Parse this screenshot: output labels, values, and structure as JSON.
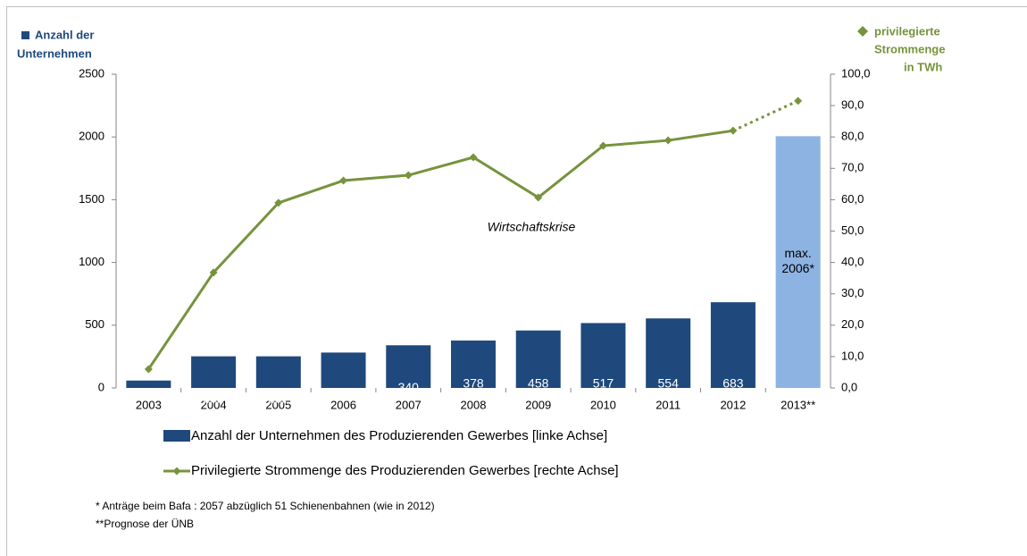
{
  "chart_data": {
    "type": "bar_line",
    "y_label": [
      "Anzahl der",
      "Unternehmen"
    ],
    "y2_label": [
      "privilegierte",
      "Strommenge",
      "in TWh"
    ],
    "annotation": "Wirtschaftskrise",
    "footnotes": [
      "* Anträge beim Bafa : 2057 abzüglich 51 Schienenbahnen  (wie in 2012)",
      "**Prognose der ÜNB"
    ],
    "categories": [
      "2003",
      "2004",
      "2005",
      "2006",
      "2007",
      "2008",
      "2009",
      "2010",
      "2011",
      "2012",
      "2013**"
    ],
    "ylim": [
      0,
      2500
    ],
    "yticks": [
      0,
      500,
      1000,
      1500,
      2000,
      2500
    ],
    "y2lim": [
      0,
      100
    ],
    "y2ticks": [
      {
        "value": 0,
        "label": "0,0"
      },
      {
        "value": 10,
        "label": "10,0"
      },
      {
        "value": 20,
        "label": "20,0"
      },
      {
        "value": 30,
        "label": "30,0"
      },
      {
        "value": 40,
        "label": "40,0"
      },
      {
        "value": 50,
        "label": "50,0"
      },
      {
        "value": 60,
        "label": "60,0"
      },
      {
        "value": 70,
        "label": "70,0"
      },
      {
        "value": 80,
        "label": "80,0"
      },
      {
        "value": 90,
        "label": "90,0"
      },
      {
        "value": 100,
        "label": "100,0"
      }
    ],
    "series": [
      {
        "name": "Anzahl der Unternehmen des Produzierenden Gewerbes [linke Achse]",
        "type": "bar",
        "color": "#1f497d",
        "colors": [
          "#1f497d",
          "#1f497d",
          "#1f497d",
          "#1f497d",
          "#1f497d",
          "#1f497d",
          "#1f497d",
          "#1f497d",
          "#1f497d",
          "#1f497d",
          "#8db3e2"
        ],
        "values": [
          59,
          252,
          252,
          282,
          340,
          378,
          458,
          517,
          554,
          683,
          2006
        ],
        "value_labels": [
          "59",
          "252",
          "252",
          "282",
          "340",
          "378",
          "458",
          "517",
          "554",
          "683",
          "max. 2006*"
        ]
      },
      {
        "name": "Privilegierte Strommenge des Produzierenden Gewerbes [rechte Achse]",
        "type": "line",
        "axis": "y2",
        "color": "#77933c",
        "dashed_last_segment": true,
        "values": [
          6.0,
          36.8,
          59.0,
          66.1,
          67.8,
          73.5,
          60.7,
          77.2,
          78.9,
          82.0,
          91.5
        ]
      }
    ]
  }
}
